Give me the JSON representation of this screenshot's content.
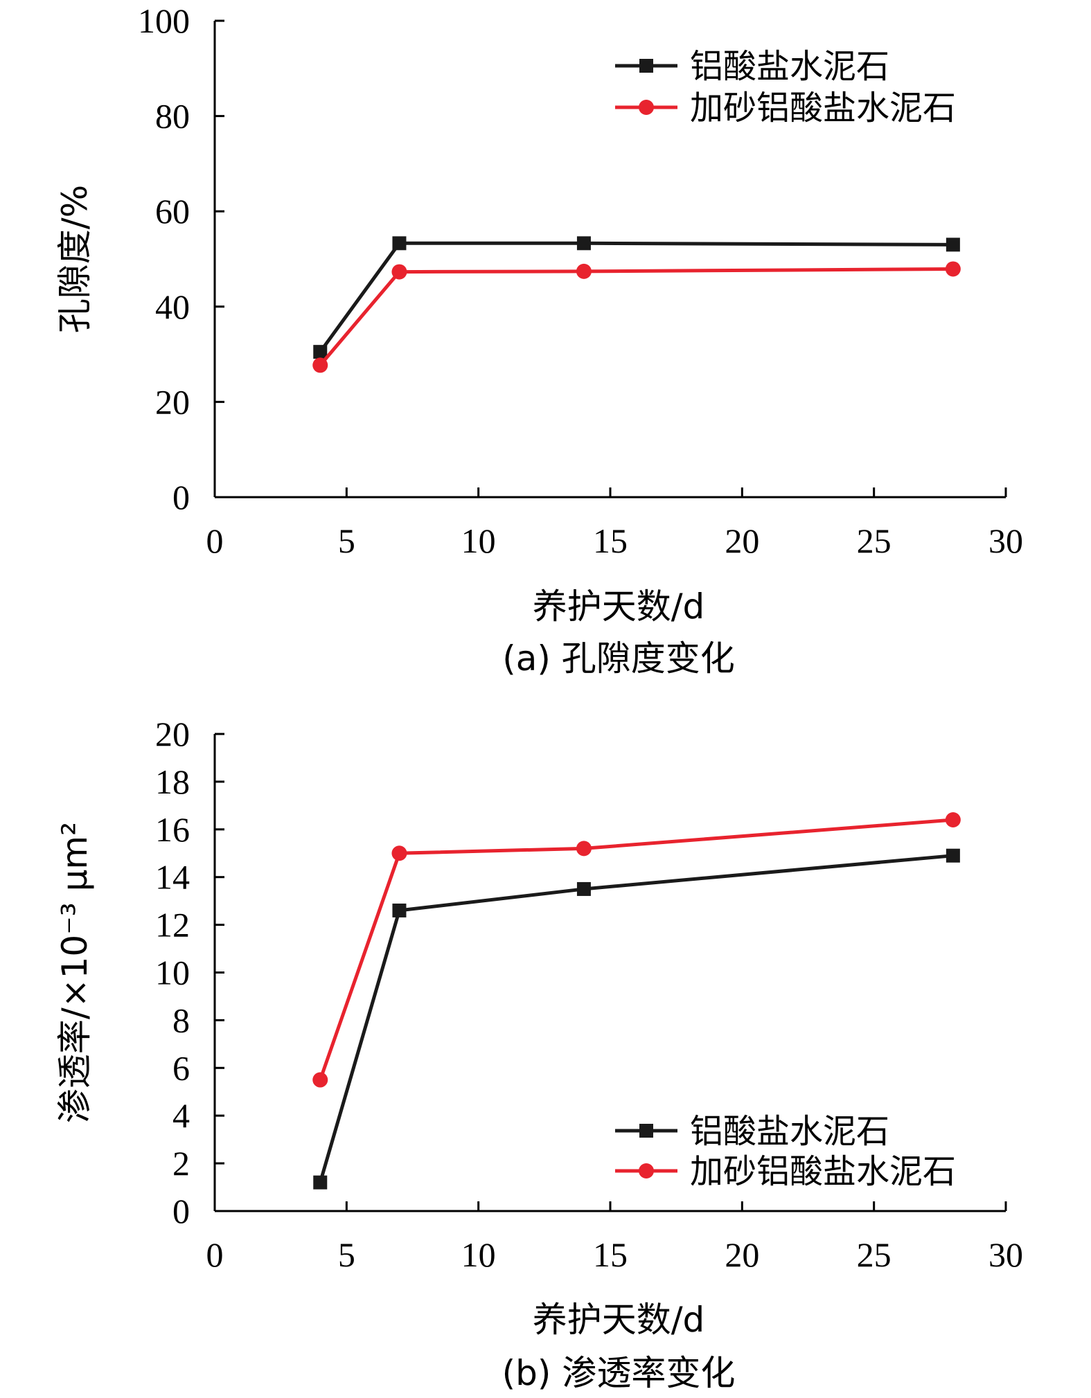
{
  "chart_data": [
    {
      "type": "line",
      "caption": "(a) 孔隙度变化",
      "xlabel": "养护天数/d",
      "ylabel": "孔隙度/%",
      "xlim": [
        0,
        30
      ],
      "ylim": [
        0,
        100
      ],
      "xticks": [
        "0",
        "5",
        "10",
        "15",
        "20",
        "25",
        "30"
      ],
      "yticks": [
        "0",
        "20",
        "40",
        "60",
        "80",
        "100"
      ],
      "legend_position": "top-right",
      "series": [
        {
          "name": "铝酸盐水泥石",
          "color": "#1a1a1a",
          "marker": "square",
          "x": [
            4,
            7,
            14,
            28
          ],
          "y": [
            30.5,
            53.3,
            53.3,
            53.0
          ]
        },
        {
          "name": "加砂铝酸盐水泥石",
          "color": "#e8232e",
          "marker": "circle",
          "x": [
            4,
            7,
            14,
            28
          ],
          "y": [
            27.7,
            47.3,
            47.4,
            47.9
          ]
        }
      ]
    },
    {
      "type": "line",
      "caption": "(b) 渗透率变化",
      "xlabel": "养护天数/d",
      "ylabel": "渗透率/×10⁻³ μm²",
      "xlim": [
        0,
        30
      ],
      "ylim": [
        0,
        20
      ],
      "xticks": [
        "0",
        "5",
        "10",
        "15",
        "20",
        "25",
        "30"
      ],
      "yticks": [
        "0",
        "2",
        "4",
        "6",
        "8",
        "10",
        "12",
        "14",
        "16",
        "18",
        "20"
      ],
      "legend_position": "bottom-right",
      "series": [
        {
          "name": "铝酸盐水泥石",
          "color": "#1a1a1a",
          "marker": "square",
          "x": [
            4,
            7,
            14,
            28
          ],
          "y": [
            1.2,
            12.6,
            13.5,
            14.9
          ]
        },
        {
          "name": "加砂铝酸盐水泥石",
          "color": "#e8232e",
          "marker": "circle",
          "x": [
            4,
            7,
            14,
            28
          ],
          "y": [
            5.5,
            15.0,
            15.2,
            16.4
          ]
        }
      ]
    }
  ]
}
